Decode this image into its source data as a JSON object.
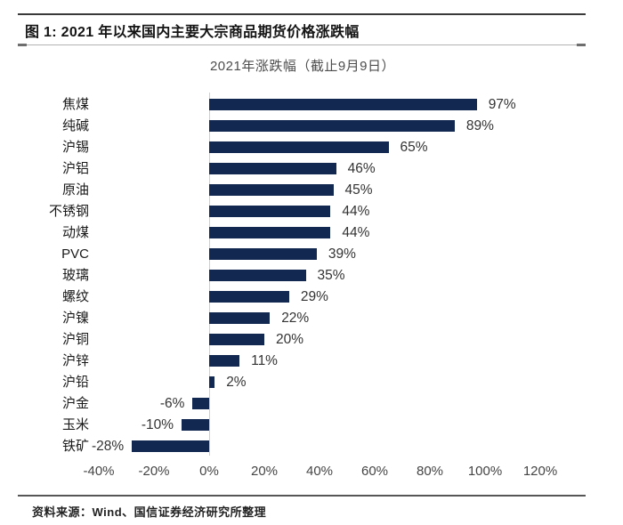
{
  "figure": {
    "caption": "图 1: 2021 年以来国内主要大宗商品期货价格涨跌幅",
    "source": "资料来源：Wind、国信证券经济研究所整理"
  },
  "chart_data": {
    "type": "bar",
    "orientation": "horizontal",
    "title": "2021年涨跌幅（截止9月9日）",
    "categories": [
      "焦煤",
      "纯碱",
      "沪锡",
      "沪铝",
      "原油",
      "不锈钢",
      "动煤",
      "PVC",
      "玻璃",
      "螺纹",
      "沪镍",
      "沪铜",
      "沪锌",
      "沪铅",
      "沪金",
      "玉米",
      "铁矿"
    ],
    "values": [
      97,
      89,
      65,
      46,
      45,
      44,
      44,
      39,
      35,
      29,
      22,
      20,
      11,
      2,
      -6,
      -10,
      -28
    ],
    "value_labels": [
      "97%",
      "89%",
      "65%",
      "46%",
      "45%",
      "44%",
      "44%",
      "39%",
      "35%",
      "29%",
      "22%",
      "20%",
      "11%",
      "2%",
      "-6%",
      "-10%",
      "-28%"
    ],
    "xlabel": "",
    "ylabel": "",
    "xlim": [
      -40,
      120
    ],
    "xticks": {
      "values": [
        -40,
        -20,
        0,
        20,
        40,
        60,
        80,
        100,
        120
      ],
      "labels": [
        "-40%",
        "-20%",
        "0%",
        "20%",
        "40%",
        "60%",
        "80%",
        "100%",
        "120%"
      ]
    },
    "grid": false,
    "zero_line": true,
    "bar_color": "#132850"
  }
}
